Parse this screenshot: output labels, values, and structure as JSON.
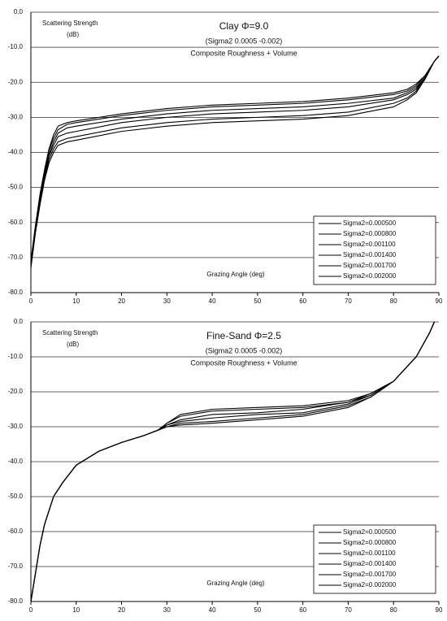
{
  "chart_data": [
    {
      "type": "line",
      "title": "Clay Φ=9.0",
      "subtitle": "(Sigma2 0.0005 -0.002)",
      "annotation": "Composite Roughness + Volume",
      "ylabel": "Scattering Strength",
      "ylabel_unit": "(dB)",
      "xlabel": "Grazing Angle (deg)",
      "x": [
        0,
        1,
        2,
        3,
        4,
        5,
        6,
        8,
        10,
        20,
        30,
        40,
        50,
        60,
        70,
        80,
        83,
        85,
        87,
        89,
        90
      ],
      "series": [
        {
          "name": "Sigma2=0.000500",
          "color": "#000000",
          "values": [
            -73,
            -63,
            -55,
            -48,
            -43,
            -40,
            -38,
            -37,
            -36.5,
            -34,
            -32.5,
            -31.5,
            -31,
            -30.5,
            -29.5,
            -27,
            -25,
            -23,
            -19,
            -14,
            -12.5
          ]
        },
        {
          "name": "Sigma2=0.000800",
          "color": "#000000",
          "values": [
            -72.5,
            -62.5,
            -54.5,
            -47.5,
            -42,
            -39,
            -37,
            -36,
            -35.5,
            -33,
            -31.5,
            -30.5,
            -30,
            -29.5,
            -28.5,
            -26,
            -24.5,
            -22.5,
            -18.5,
            -14,
            -12.5
          ]
        },
        {
          "name": "Sigma2=0.001100",
          "color": "#000000",
          "values": [
            -72,
            -62,
            -54,
            -47,
            -41,
            -38,
            -35.5,
            -34.5,
            -34,
            -31.5,
            -30,
            -29,
            -28.5,
            -28,
            -27,
            -25,
            -23.5,
            -22,
            -18.5,
            -14,
            -12.5
          ]
        },
        {
          "name": "Sigma2=0.001400",
          "color": "#000000",
          "values": [
            -71.5,
            -61.5,
            -53,
            -46,
            -40.5,
            -37,
            -34.5,
            -33,
            -32.5,
            -30.5,
            -29,
            -28,
            -27.5,
            -27,
            -26,
            -24.5,
            -23,
            -21.5,
            -18.5,
            -14,
            -12.5
          ]
        },
        {
          "name": "Sigma2=0.001700",
          "color": "#000000",
          "values": [
            -71,
            -61,
            -52.5,
            -45.5,
            -39.5,
            -36,
            -33.5,
            -32,
            -31.5,
            -29.5,
            -28,
            -27,
            -26.5,
            -26,
            -25,
            -23.5,
            -22.5,
            -21,
            -18,
            -14,
            -12.5
          ]
        },
        {
          "name": "Sigma2=0.002000",
          "color": "#000000",
          "values": [
            -71,
            -61,
            -52,
            -45,
            -39,
            -35,
            -32.5,
            -31.5,
            -31,
            -29,
            -27.5,
            -26.5,
            -26,
            -25.5,
            -24.5,
            -23,
            -22,
            -20.5,
            -18,
            -14,
            -12.5
          ]
        }
      ],
      "xlim": [
        0,
        90
      ],
      "xticks": [
        0,
        10,
        20,
        30,
        40,
        50,
        60,
        70,
        80,
        90
      ],
      "ylim": [
        -80,
        0
      ],
      "yticks": [
        {
          "value": 0,
          "label": "0.0"
        },
        {
          "value": -10,
          "label": "-10.0"
        },
        {
          "value": -20,
          "label": "-20.0"
        },
        {
          "value": -30,
          "label": "-30.0"
        },
        {
          "value": -40,
          "label": "-40.0"
        },
        {
          "value": -50,
          "label": "-50.0"
        },
        {
          "value": -60,
          "label": "-60.0"
        },
        {
          "value": -70,
          "label": "-70.0"
        },
        {
          "value": -80,
          "label": "-80.0"
        }
      ],
      "grid": true,
      "legend": "lower right"
    },
    {
      "type": "line",
      "title": "Fine-Sand Φ=2.5",
      "subtitle": "(Sigma2 0.0005 -0.002)",
      "annotation": "Composite Roughness + Volume",
      "ylabel": "Scattering Strength",
      "ylabel_unit": "(dB)",
      "xlabel": "Grazing Angle (deg)",
      "x": [
        0,
        1,
        2,
        3,
        5,
        7,
        10,
        15,
        20,
        25,
        28,
        30,
        33,
        40,
        50,
        60,
        70,
        75,
        80,
        85,
        88,
        89
      ],
      "series": [
        {
          "name": "Sigma2=0.000500",
          "color": "#000000",
          "values": [
            -80,
            -72,
            -64,
            -58,
            -50,
            -46,
            -41,
            -37,
            -34.5,
            -32.5,
            -31,
            -30,
            -29.5,
            -29,
            -28,
            -27,
            -24.5,
            -21.5,
            -17,
            -10,
            -3,
            0
          ]
        },
        {
          "name": "Sigma2=0.000800",
          "color": "#000000",
          "values": [
            -80,
            -72,
            -64,
            -58,
            -50,
            -46,
            -41,
            -37,
            -34.5,
            -32.5,
            -31,
            -30,
            -29,
            -28.5,
            -27.5,
            -26.5,
            -24,
            -21.5,
            -17,
            -10,
            -3,
            0
          ]
        },
        {
          "name": "Sigma2=0.001100",
          "color": "#000000",
          "values": [
            -80,
            -72,
            -64,
            -58,
            -50,
            -46,
            -41,
            -37,
            -34.5,
            -32.5,
            -31,
            -29.5,
            -28.5,
            -27.5,
            -26.5,
            -26,
            -23.5,
            -21,
            -17,
            -10,
            -3,
            0
          ]
        },
        {
          "name": "Sigma2=0.001400",
          "color": "#000000",
          "values": [
            -80,
            -72,
            -64,
            -58,
            -50,
            -46,
            -41,
            -37,
            -34.5,
            -32.5,
            -31,
            -29.5,
            -28,
            -26.5,
            -26,
            -25,
            -23,
            -21,
            -17,
            -10,
            -3,
            0
          ]
        },
        {
          "name": "Sigma2=0.001700",
          "color": "#000000",
          "values": [
            -80,
            -72,
            -64,
            -58,
            -50,
            -46,
            -41,
            -37,
            -34.5,
            -32.5,
            -31,
            -29,
            -27,
            -25.5,
            -25,
            -24.5,
            -23,
            -20.5,
            -17,
            -10,
            -3,
            0
          ]
        },
        {
          "name": "Sigma2=0.002000",
          "color": "#000000",
          "values": [
            -80,
            -72,
            -64,
            -58,
            -50,
            -46,
            -41,
            -37,
            -34.5,
            -32.5,
            -31,
            -29,
            -26.5,
            -25,
            -24.5,
            -24,
            -22.5,
            -20.5,
            -17,
            -10,
            -3,
            0
          ]
        }
      ],
      "xlim": [
        0,
        90
      ],
      "xticks": [
        0,
        10,
        20,
        30,
        40,
        50,
        60,
        70,
        80,
        90
      ],
      "ylim": [
        -80,
        0
      ],
      "yticks": [
        {
          "value": 0,
          "label": "0.0"
        },
        {
          "value": -10,
          "label": "-10.0"
        },
        {
          "value": -20,
          "label": "-20.0"
        },
        {
          "value": -30,
          "label": "-30.0"
        },
        {
          "value": -40,
          "label": "-40.0"
        },
        {
          "value": -50,
          "label": "-50.0"
        },
        {
          "value": -60,
          "label": "-60.0"
        },
        {
          "value": -70,
          "label": "-70.0"
        },
        {
          "value": -80,
          "label": "-80.0"
        }
      ],
      "grid": true,
      "legend": "lower right"
    }
  ]
}
